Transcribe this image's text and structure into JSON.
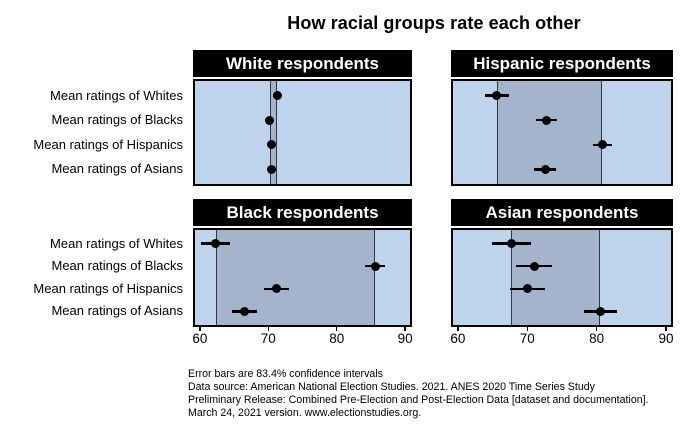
{
  "title": "How racial groups rate each other",
  "footnotes": [
    "Error bars are 83.4% confidence intervals",
    "Data source: American National Election Studies. 2021. ANES 2020 Time Series Study",
    "Preliminary Release: Combined Pre-Election and Post-Election Data [dataset and documentation].",
    "March 24, 2021 version. www.electionstudies.org."
  ],
  "chart_data": {
    "type": "scatter",
    "title": "How racial groups rate each other",
    "xlabel": "",
    "ylabel": "",
    "x_domain": [
      59,
      91
    ],
    "x_ticks": [
      60,
      70,
      80,
      90
    ],
    "grid": "off",
    "legend": "none",
    "error_bar_note": "Error bars are 83.4% confidence intervals",
    "categories": [
      "Mean ratings of Whites",
      "Mean ratings of Blacks",
      "Mean ratings of Hispanics",
      "Mean ratings of Asians"
    ],
    "panels": [
      {
        "title": "White respondents",
        "position": "top-left",
        "means": [
          71.3,
          70.2,
          70.5,
          70.5
        ],
        "ci_half_widths": [
          0.6,
          0.6,
          0.6,
          0.6
        ],
        "band_range": [
          70.2,
          71.3
        ]
      },
      {
        "title": "Hispanic respondents",
        "position": "top-right",
        "means": [
          65.6,
          72.8,
          80.8,
          72.6
        ],
        "ci_half_widths": [
          1.7,
          1.5,
          1.4,
          1.6
        ],
        "band_range": [
          65.6,
          80.8
        ]
      },
      {
        "title": "Black respondents",
        "position": "bottom-left",
        "means": [
          62.3,
          85.6,
          71.2,
          66.5
        ],
        "ci_half_widths": [
          2.1,
          1.5,
          1.8,
          1.8
        ],
        "band_range": [
          62.3,
          85.6
        ]
      },
      {
        "title": "Asian respondents",
        "position": "bottom-right",
        "means": [
          67.7,
          71.0,
          70.0,
          80.5
        ],
        "ci_half_widths": [
          2.8,
          2.6,
          2.5,
          2.4
        ],
        "band_range": [
          67.7,
          80.5
        ]
      }
    ],
    "colors": {
      "panel_background": "#bed3ec",
      "band_fill": "#a3b4cc",
      "band_line": "#2e3744",
      "header_background": "#000000",
      "header_text": "#ffffff",
      "point": "#000000",
      "error_bar": "#000000",
      "panel_border": "#000000",
      "text": "#000000"
    }
  }
}
